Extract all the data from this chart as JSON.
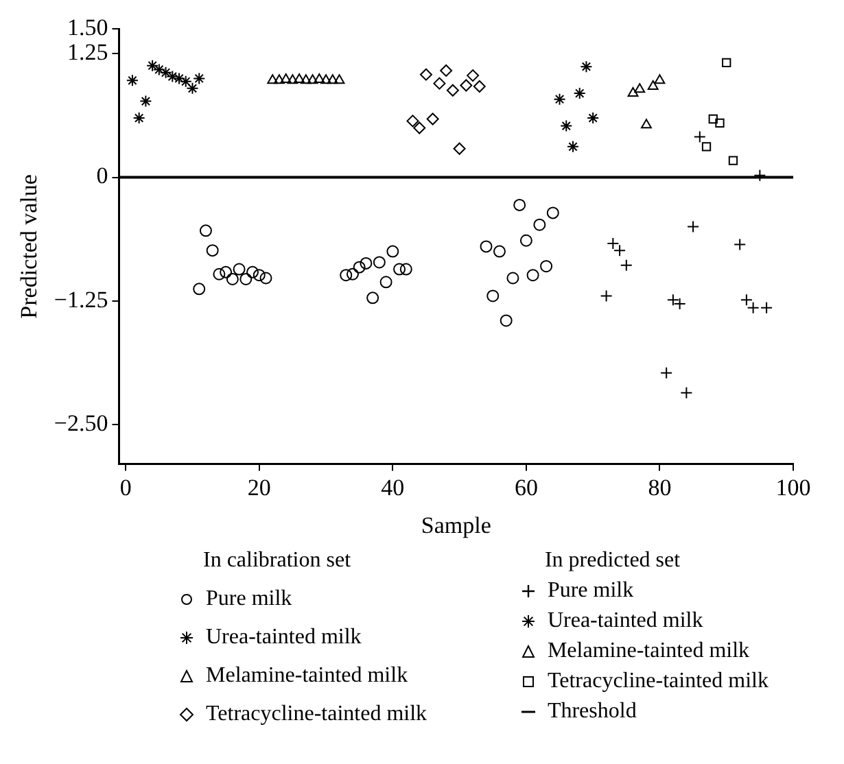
{
  "chart_data": {
    "type": "scatter",
    "xlabel": "Sample",
    "ylabel": "Predicted value",
    "xlim": [
      -1,
      100
    ],
    "xticks": [
      0,
      20,
      40,
      60,
      80,
      100
    ],
    "ylim": [
      -2.9,
      1.5
    ],
    "yticks": [
      {
        "value": 1.5,
        "label": "1.50"
      },
      1.25,
      0,
      {
        "value": -1.25,
        "label": "−1.25"
      },
      {
        "value": -2.5,
        "label": "−2.50"
      }
    ],
    "grid": false,
    "legend": "bottom",
    "annotations": [
      "In calibration set",
      "In predicted set"
    ],
    "ref_lines": [
      {
        "axis": "y",
        "value": 0,
        "label": "Threshold",
        "color": "#000000"
      }
    ],
    "series": [
      {
        "name": "Pure milk",
        "color": "#000000",
        "marker": "circle",
        "x": [
          11,
          12,
          13,
          14,
          15,
          16,
          17,
          18,
          19,
          20,
          21,
          33,
          34,
          35,
          36,
          37,
          38,
          39,
          40,
          41,
          42,
          54,
          55,
          56,
          57,
          58,
          59,
          60,
          61,
          62,
          63,
          64
        ],
        "values": [
          -1.13,
          -0.54,
          -0.74,
          -0.98,
          -0.96,
          -1.03,
          -0.93,
          -1.03,
          -0.96,
          -0.99,
          -1.02,
          -0.99,
          -0.98,
          -0.91,
          -0.87,
          -1.22,
          -0.86,
          -1.06,
          -0.75,
          -0.93,
          -0.93,
          -0.7,
          -1.2,
          -0.75,
          -1.45,
          -1.02,
          -0.28,
          -0.64,
          -0.99,
          -0.48,
          -0.9,
          -0.36
        ]
      },
      {
        "name": "Urea-tainted milk",
        "color": "#000000",
        "x": [
          1,
          2,
          3,
          4,
          5,
          6,
          7,
          8,
          9,
          10,
          11
        ],
        "values": [
          0.98,
          0.6,
          0.77,
          1.13,
          1.09,
          1.06,
          1.02,
          1.0,
          0.97,
          0.9,
          1.0
        ]
      },
      {
        "name": "Melamine-tainted milk",
        "color": "#000000",
        "marker": "triangle",
        "x": [
          22,
          23,
          24,
          25,
          26,
          27,
          28,
          29,
          30,
          31,
          32
        ],
        "values": [
          0.98,
          0.98,
          0.99,
          0.98,
          0.99,
          0.98,
          0.98,
          0.99,
          0.98,
          0.98,
          0.98
        ]
      },
      {
        "name": "Tetracycline-tainted milk",
        "color": "#000000",
        "marker": "diamond",
        "x": [
          43,
          44,
          45,
          46,
          47,
          48,
          49,
          50,
          51,
          52,
          53
        ],
        "values": [
          0.57,
          0.5,
          1.04,
          0.59,
          0.95,
          1.08,
          0.88,
          0.29,
          0.93,
          1.03,
          0.92
        ]
      },
      {
        "name": "Pure milk",
        "color": "#000000",
        "marker": "cross",
        "x": [
          72,
          73,
          74,
          75,
          81,
          82,
          83,
          84,
          85,
          86,
          92,
          93,
          94,
          95,
          96
        ],
        "values": [
          -1.2,
          -0.67,
          -0.74,
          -0.89,
          -1.98,
          -1.24,
          -1.28,
          -2.18,
          -0.5,
          0.41,
          -0.68,
          -1.24,
          -1.32,
          0.02,
          -1.32
        ]
      },
      {
        "name": "Urea-tainted milk",
        "color": "#000000",
        "x": [
          65,
          66,
          67,
          68,
          69,
          70
        ],
        "values": [
          0.79,
          0.52,
          0.31,
          0.85,
          1.12,
          0.6
        ]
      },
      {
        "name": "Melamine-tainted milk",
        "color": "#000000",
        "marker": "triangle",
        "x": [
          76,
          77,
          78,
          79,
          80
        ],
        "values": [
          0.85,
          0.89,
          0.53,
          0.92,
          0.98
        ]
      },
      {
        "name": "Tetracycline-tainted milk",
        "color": "#000000",
        "marker": "square",
        "x": [
          87,
          88,
          89,
          90,
          91
        ],
        "values": [
          0.31,
          0.59,
          0.55,
          1.16,
          0.17
        ]
      }
    ]
  }
}
